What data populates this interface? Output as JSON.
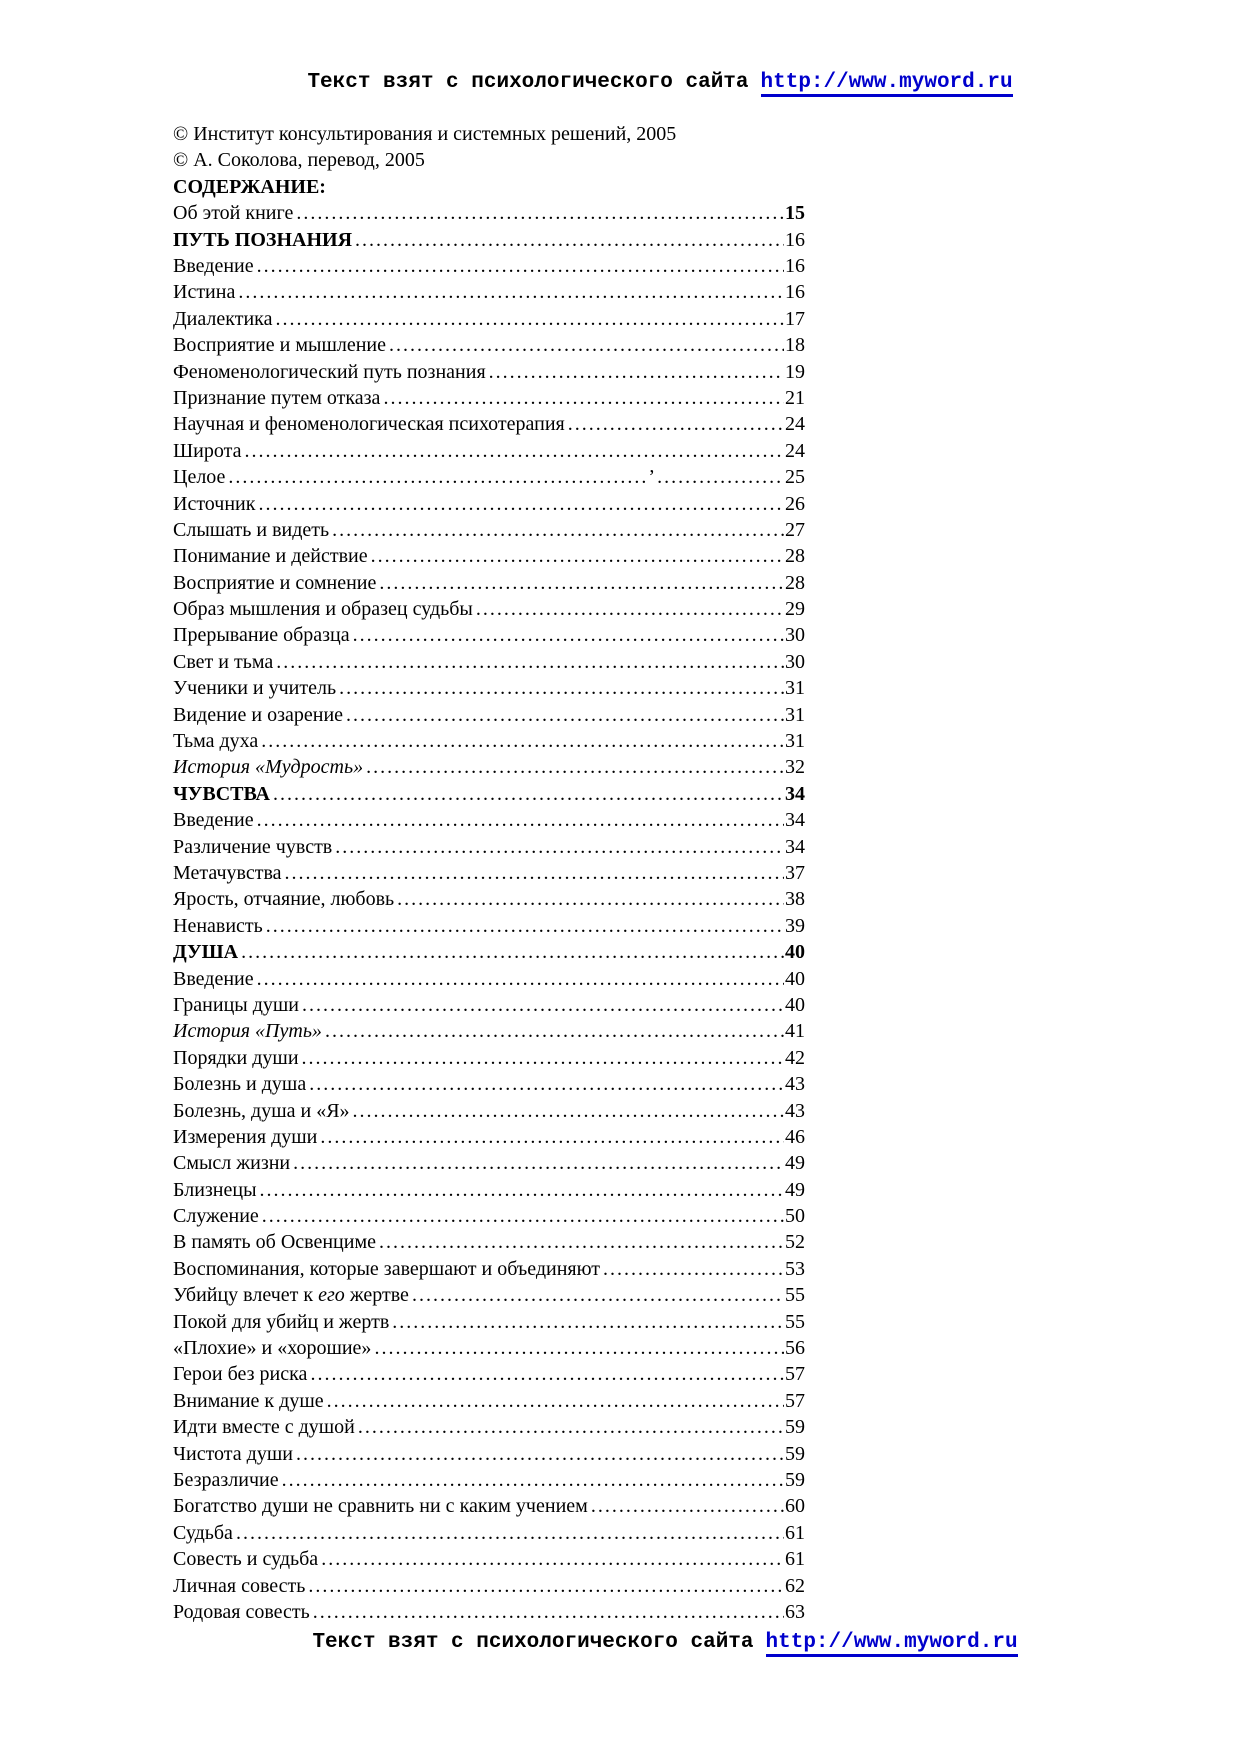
{
  "header": {
    "prefix": "Текст взят с психологического сайта",
    "link_text": "http://www.myword.ru"
  },
  "footer": {
    "prefix": "Текст взят с психологического сайта",
    "link_text": "http://www.myword.ru"
  },
  "link_color": "#0000CC",
  "copyright": {
    "line1": "© Институт консультирования и системных решений, 2005",
    "line2": "© А. Соколова, перевод, 2005"
  },
  "contents": {
    "title": "СОДЕРЖАНИЕ:"
  },
  "toc": [
    {
      "label": "Об этой книге",
      "page": "15",
      "page_style": "bold"
    },
    {
      "label": "ПУТЬ ПОЗНАНИЯ",
      "page": "16",
      "label_style": "bold"
    },
    {
      "label": "Введение",
      "page": "16"
    },
    {
      "label": "Истина",
      "page": "16"
    },
    {
      "label": "Диалектика",
      "page": "17"
    },
    {
      "label": "Восприятие и мышление",
      "page": "18"
    },
    {
      "label": "Феноменологический путь познания",
      "page": "19"
    },
    {
      "label": "Признание путем отказа",
      "page": "21"
    },
    {
      "label": "Научная и феноменологическая психотерапия",
      "page": "24"
    },
    {
      "label": "Широта",
      "page": "24"
    },
    {
      "label": "Целое",
      "page": "25",
      "leader_mark": "’"
    },
    {
      "label": "Источник",
      "page": "26"
    },
    {
      "label": "Слышать и видеть",
      "page": "27"
    },
    {
      "label": "Понимание и действие",
      "page": "28"
    },
    {
      "label": "Восприятие и сомнение",
      "page": "28"
    },
    {
      "label": "Образ мышления и образец судьбы",
      "page": "29"
    },
    {
      "label": "Прерывание образца",
      "page": "30"
    },
    {
      "label": "Свет и тьма",
      "page": "30"
    },
    {
      "label": "Ученики и учитель",
      "page": "31"
    },
    {
      "label": "Видение и озарение",
      "page": "31"
    },
    {
      "label": "Тьма духа",
      "page": "31"
    },
    {
      "label": "История «Мудрость»",
      "page": "32",
      "label_style": "italic"
    },
    {
      "label": "ЧУВСТВА",
      "page": "34",
      "label_style": "bold",
      "page_style": "bold"
    },
    {
      "label": "Введение",
      "page": "34"
    },
    {
      "label": "Различение чувств",
      "page": "34"
    },
    {
      "label": "Метачувства",
      "page": "37"
    },
    {
      "label": "Ярость, отчаяние, любовь",
      "page": "38"
    },
    {
      "label": "Ненависть",
      "page": "39"
    },
    {
      "label": "ДУША",
      "page": "40",
      "label_style": "bold",
      "page_style": "bold"
    },
    {
      "label": "Введение",
      "page": "40"
    },
    {
      "label": "Границы души",
      "page": "40"
    },
    {
      "label": "История «Путь»",
      "page": "41",
      "label_style": "italic"
    },
    {
      "label": "Порядки души",
      "page": "42"
    },
    {
      "label": "Болезнь и душа",
      "page": "43"
    },
    {
      "label": "Болезнь, душа и «Я»",
      "page": "43"
    },
    {
      "label": "Измерения души",
      "page": "46"
    },
    {
      "label": "Смысл жизни",
      "page": "49"
    },
    {
      "label": "Близнецы",
      "page": "49"
    },
    {
      "label": "Служение",
      "page": "50"
    },
    {
      "label": "В память об Освенциме",
      "page": "52"
    },
    {
      "label": "Воспоминания, которые завершают и объединяют",
      "page": "53"
    },
    {
      "label_parts": [
        {
          "text": "Убийцу влечет к ",
          "style": "normal"
        },
        {
          "text": "его",
          "style": "italic"
        },
        {
          "text": " жертве",
          "style": "normal"
        }
      ],
      "page": "55"
    },
    {
      "label": "Покой для убийц и жертв",
      "page": "55"
    },
    {
      "label": "«Плохие» и «хорошие»",
      "page": "56"
    },
    {
      "label": "Герои без риска",
      "page": "57"
    },
    {
      "label": "Внимание к душе",
      "page": "57"
    },
    {
      "label": "Идти вместе с душой",
      "page": "59"
    },
    {
      "label": "Чистота души",
      "page": "59"
    },
    {
      "label": "Безразличие",
      "page": "59"
    },
    {
      "label": "Богатство души не сравнить ни с каким учением",
      "page": "60"
    },
    {
      "label": "Судьба",
      "page": "61"
    },
    {
      "label": "Совесть и судьба",
      "page": "61"
    },
    {
      "label": "Личная совесть",
      "page": "62"
    },
    {
      "label": "Родовая совесть",
      "page": "63"
    }
  ]
}
